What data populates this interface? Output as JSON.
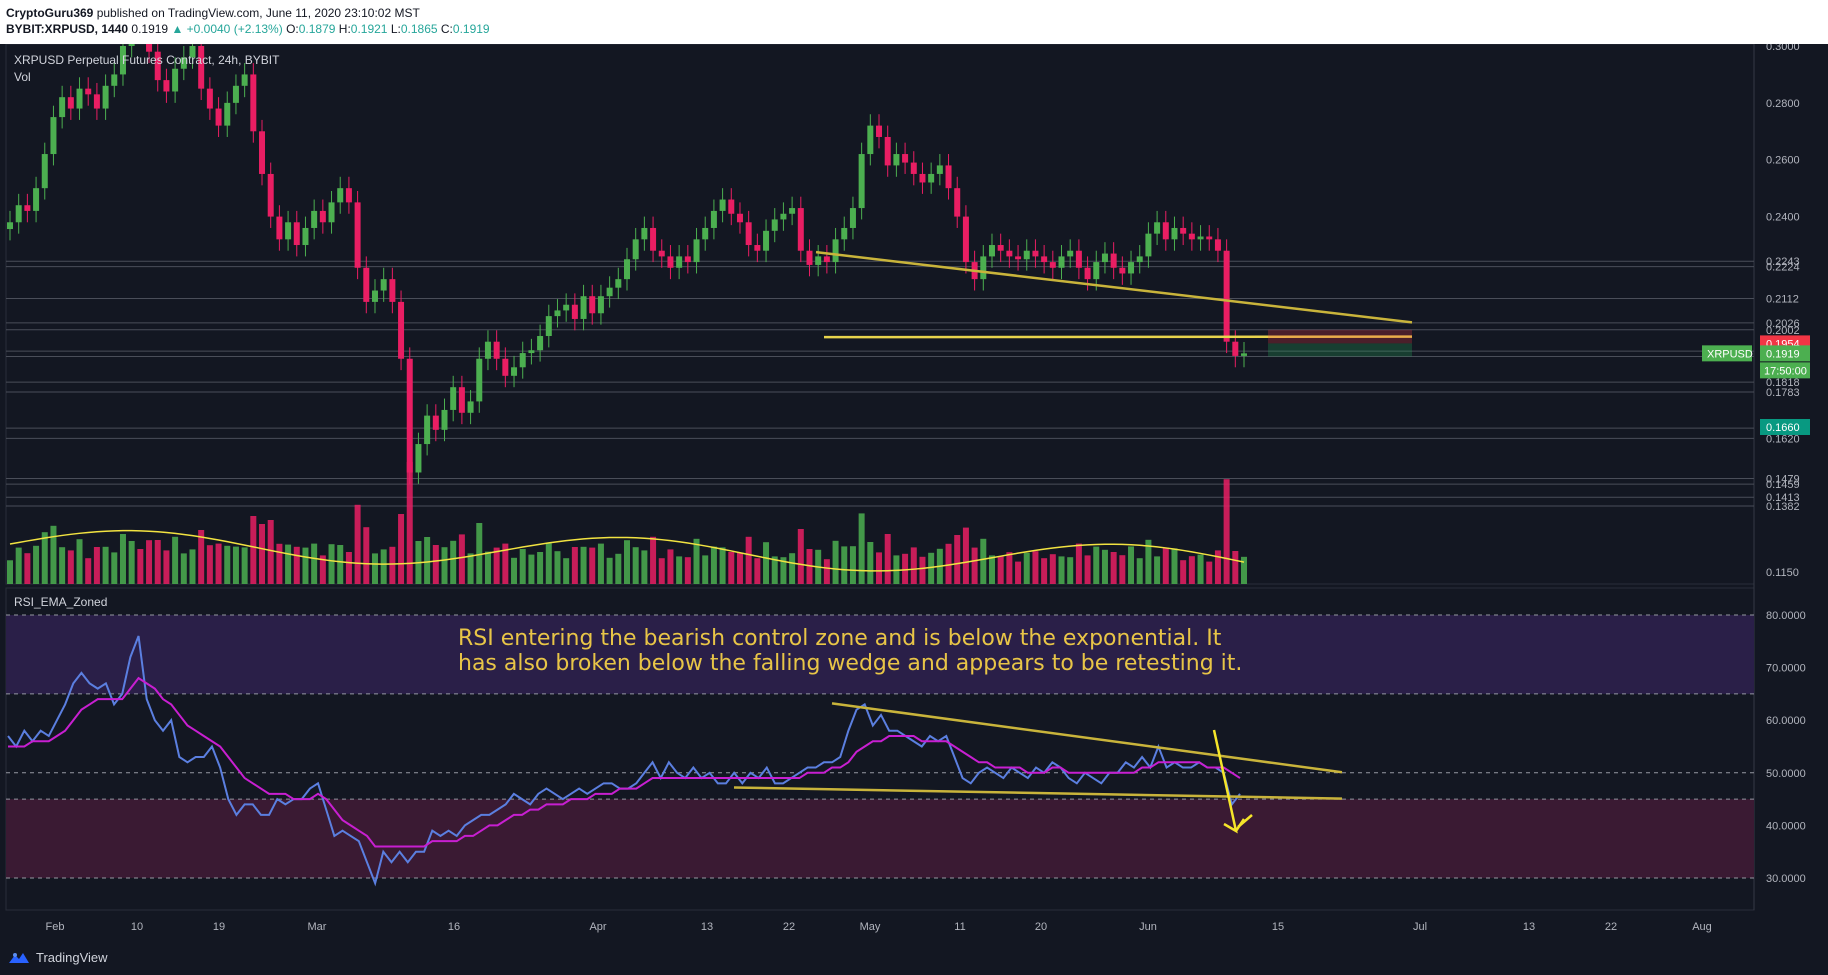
{
  "header": {
    "author": "CryptoGuru369",
    "published_on": "published on TradingView.com, June 11, 2020 23:10:02 MST",
    "symbol": "BYBIT:XRPUSD, 1440",
    "last": "0.1919",
    "change": "▲ +0.0040 (+2.13%)",
    "o_label": "O:",
    "o": "0.1879",
    "h_label": "H:",
    "h": "0.1921",
    "l_label": "L:",
    "l": "0.1865",
    "c_label": "C:",
    "c": "0.1919"
  },
  "footer": {
    "brand": "TradingView",
    "brand_icon": "tradingview-logo-icon"
  },
  "annotation": {
    "line1": "RSI entering the bearish control zone and is below the exponential. It",
    "line2": "has also broken below the falling wedge and appears to be retesting it."
  },
  "colors": {
    "background": "#131722",
    "up": "#4caf50",
    "down": "#e91e63",
    "trendline": "#c9b43b",
    "vol_ma": "#f2e341",
    "rsi": "#5b7fe0",
    "rsi_ema": "#c81fd1",
    "zone_top": "#2a1f48",
    "zone_bottom": "#3a1a33"
  },
  "chart_data": [
    {
      "type": "candlestick",
      "title": "XRPUSD Perpetual Futures Contract, 24h, BYBIT",
      "subtitle": "Vol",
      "x_tick_labels": [
        "Feb",
        "10",
        "19",
        "Mar",
        "16",
        "Apr",
        "13",
        "22",
        "May",
        "11",
        "20",
        "Jun",
        "15",
        "Jul",
        "13",
        "22",
        "Aug"
      ],
      "y_tick_labels": [
        "0.3000",
        "0.2800",
        "0.2600",
        "0.2400",
        "0.2243",
        "0.2224",
        "0.2112",
        "0.2026",
        "0.2002",
        "0.1927",
        "0.1908",
        "0.1818",
        "0.1783",
        "0.1656",
        "0.1620",
        "0.1479",
        "0.1459",
        "0.1413",
        "0.1382",
        "0.1150"
      ],
      "price_badges": [
        {
          "value": "0.1954",
          "color": "#f23645"
        },
        {
          "value": "0.1919",
          "color": "#4caf50",
          "label": "XRPUSD",
          "countdown": "17:50:00"
        },
        {
          "value": "0.1660",
          "color": "#089981"
        }
      ],
      "horizontal_levels": [
        0.2243,
        0.2224,
        0.2112,
        0.2026,
        0.2002,
        0.1927,
        0.1908,
        0.1818,
        0.1783,
        0.1656,
        0.162,
        0.1479,
        0.1459,
        0.1413,
        0.1382
      ],
      "ohlc_close_path": [
        0.238,
        0.244,
        0.242,
        0.25,
        0.262,
        0.275,
        0.282,
        0.278,
        0.285,
        0.283,
        0.278,
        0.286,
        0.29,
        0.3,
        0.31,
        0.305,
        0.298,
        0.288,
        0.284,
        0.292,
        0.296,
        0.3,
        0.285,
        0.278,
        0.272,
        0.28,
        0.286,
        0.29,
        0.27,
        0.255,
        0.24,
        0.232,
        0.238,
        0.23,
        0.236,
        0.242,
        0.238,
        0.245,
        0.25,
        0.245,
        0.222,
        0.21,
        0.214,
        0.218,
        0.21,
        0.19,
        0.15,
        0.16,
        0.17,
        0.165,
        0.172,
        0.18,
        0.171,
        0.175,
        0.19,
        0.196,
        0.19,
        0.184,
        0.187,
        0.192,
        0.193,
        0.198,
        0.205,
        0.207,
        0.209,
        0.204,
        0.212,
        0.206,
        0.212,
        0.215,
        0.218,
        0.225,
        0.232,
        0.236,
        0.228,
        0.226,
        0.222,
        0.226,
        0.224,
        0.232,
        0.236,
        0.242,
        0.246,
        0.241,
        0.238,
        0.23,
        0.228,
        0.235,
        0.239,
        0.241,
        0.243,
        0.228,
        0.223,
        0.226,
        0.224,
        0.232,
        0.236,
        0.243,
        0.262,
        0.272,
        0.268,
        0.258,
        0.262,
        0.259,
        0.255,
        0.252,
        0.255,
        0.258,
        0.25,
        0.24,
        0.224,
        0.218,
        0.226,
        0.23,
        0.228,
        0.226,
        0.225,
        0.228,
        0.226,
        0.224,
        0.222,
        0.226,
        0.228,
        0.222,
        0.218,
        0.224,
        0.227,
        0.222,
        0.22,
        0.224,
        0.226,
        0.234,
        0.238,
        0.232,
        0.236,
        0.234,
        0.232,
        0.233,
        0.232,
        0.228,
        0.196,
        0.191,
        0.1919
      ],
      "trendlines": [
        {
          "name": "falling-wedge-top",
          "from": [
            "Apr 27",
            0.2275
          ],
          "to": [
            "Jun 27",
            0.2028
          ]
        },
        {
          "name": "wedge-support",
          "from": [
            "Apr 26",
            0.1976
          ],
          "to": [
            "Jun 27",
            0.1978
          ]
        }
      ],
      "projection_box": {
        "entry": 0.1954,
        "stop": 0.2002,
        "target": 0.1908
      }
    },
    {
      "type": "line",
      "title": "RSI_EMA_Zoned",
      "y_tick_labels": [
        "80.0000",
        "70.0000",
        "60.0000",
        "50.0000",
        "40.0000",
        "30.0000"
      ],
      "ylim": [
        25,
        85
      ],
      "zones": [
        {
          "name": "bullish-control-zone",
          "from": 65,
          "to": 80
        },
        {
          "name": "bearish-control-zone",
          "from": 30,
          "to": 45
        }
      ],
      "dashed_levels": [
        80,
        65,
        50,
        45,
        30
      ],
      "series": [
        {
          "key": "rsi",
          "values": [
            57,
            55,
            58,
            56,
            58,
            57,
            60,
            63,
            67,
            69,
            67,
            66,
            67,
            63,
            65,
            72,
            76,
            64,
            60,
            58,
            60,
            53,
            52,
            53,
            53,
            55,
            51,
            45,
            42,
            44,
            44,
            42,
            42,
            45,
            44,
            45,
            45,
            47,
            48,
            43,
            38,
            39,
            38,
            37,
            33,
            29,
            35,
            33,
            35,
            33,
            35,
            35,
            39,
            38,
            39,
            38,
            40,
            41,
            42,
            42,
            43,
            44,
            46,
            45,
            44,
            46,
            47,
            46,
            45,
            46,
            47,
            46,
            47,
            48,
            48,
            47,
            47,
            48,
            50,
            52,
            49,
            52,
            50,
            49,
            51,
            49,
            50,
            48,
            48,
            50,
            48,
            50,
            49,
            51,
            48,
            48,
            49,
            50,
            51,
            51,
            52,
            52,
            53,
            58,
            62,
            63,
            59,
            61,
            58,
            58,
            57,
            56,
            55,
            57,
            56,
            57,
            53,
            49,
            48,
            50,
            51,
            50,
            49,
            51,
            50,
            49,
            51,
            50,
            52,
            51,
            49,
            48,
            50,
            49,
            48,
            50,
            50,
            52,
            51,
            53,
            51,
            55,
            51,
            52,
            51,
            51,
            52,
            51,
            51,
            50,
            44,
            46
          ]
        },
        {
          "key": "rsi_ema",
          "values": [
            55,
            55,
            55,
            56,
            56,
            56,
            57,
            58,
            60,
            62,
            63,
            64,
            64,
            64,
            64,
            66,
            68,
            67,
            66,
            64,
            63,
            61,
            59,
            58,
            57,
            56,
            55,
            53,
            51,
            49,
            48,
            47,
            46,
            46,
            46,
            45,
            45,
            45,
            46,
            45,
            43,
            41,
            40,
            39,
            38,
            36,
            36,
            36,
            36,
            36,
            36,
            36,
            37,
            37,
            37,
            37,
            38,
            38,
            39,
            40,
            40,
            41,
            42,
            42,
            43,
            43,
            44,
            44,
            44,
            45,
            45,
            45,
            46,
            46,
            46,
            47,
            47,
            47,
            48,
            49,
            49,
            49,
            49,
            49,
            49,
            49,
            49,
            49,
            49,
            49,
            49,
            49,
            49,
            49,
            49,
            49,
            49,
            49,
            50,
            50,
            50,
            51,
            51,
            52,
            54,
            55,
            56,
            56,
            57,
            57,
            57,
            57,
            56,
            56,
            56,
            56,
            55,
            54,
            53,
            52,
            52,
            51,
            51,
            51,
            51,
            50,
            50,
            50,
            51,
            51,
            50,
            50,
            50,
            50,
            50,
            50,
            50,
            50,
            50,
            51,
            51,
            52,
            52,
            52,
            52,
            52,
            52,
            51,
            51,
            51,
            50,
            49
          ]
        }
      ],
      "trendlines": [
        {
          "name": "rsi-wedge-top",
          "from": [
            63,
            "Apr 27"
          ],
          "to": [
            50,
            "Jun 23"
          ]
        },
        {
          "name": "rsi-wedge-bottom",
          "from": [
            47,
            "Apr 17"
          ],
          "to": [
            45,
            "Jun 23"
          ]
        }
      ]
    }
  ]
}
